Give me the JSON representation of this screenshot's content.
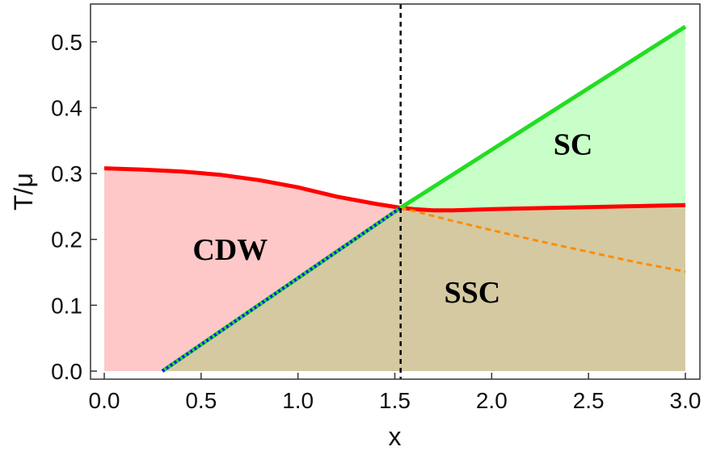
{
  "chart_data": {
    "type": "area",
    "xlabel": "x",
    "ylabel": "T/μ",
    "xlim": [
      0,
      3
    ],
    "ylim": [
      0,
      0.55
    ],
    "xticks": [
      "0.0",
      "0.5",
      "1.0",
      "1.5",
      "2.0",
      "2.5",
      "3.0"
    ],
    "yticks": [
      "0.0",
      "0.1",
      "0.2",
      "0.3",
      "0.4",
      "0.5"
    ],
    "grid": false,
    "critical_x": 1.53,
    "series": [
      {
        "style": "solid",
        "color": "#ff0000",
        "points": [
          [
            0.0,
            0.308
          ],
          [
            0.2,
            0.306
          ],
          [
            0.4,
            0.303
          ],
          [
            0.6,
            0.298
          ],
          [
            0.8,
            0.29
          ],
          [
            1.0,
            0.279
          ],
          [
            1.2,
            0.265
          ],
          [
            1.4,
            0.254
          ],
          [
            1.53,
            0.248
          ],
          [
            1.6,
            0.246
          ],
          [
            1.7,
            0.244
          ],
          [
            1.8,
            0.244
          ],
          [
            2.0,
            0.246
          ],
          [
            2.5,
            0.249
          ],
          [
            3.0,
            0.252
          ]
        ]
      },
      {
        "style": "solid",
        "color": "#22dd22",
        "points": [
          [
            0.3,
            0.0
          ],
          [
            1.53,
            0.248
          ],
          [
            3.0,
            0.523
          ]
        ]
      },
      {
        "style": "dotted",
        "color": "#1a1aff",
        "points": [
          [
            0.3,
            0.0
          ],
          [
            1.53,
            0.248
          ]
        ]
      },
      {
        "style": "dashed",
        "color": "#ff8c00",
        "points": [
          [
            1.53,
            0.248
          ],
          [
            1.8,
            0.228
          ],
          [
            2.0,
            0.214
          ],
          [
            2.25,
            0.197
          ],
          [
            2.5,
            0.181
          ],
          [
            2.75,
            0.165
          ],
          [
            3.0,
            0.151
          ]
        ]
      }
    ],
    "regions": [
      {
        "label": "CDW",
        "label_at": [
          0.65,
          0.185
        ],
        "color": "#ffc8c8"
      },
      {
        "label": "SSC",
        "label_at": [
          1.9,
          0.12
        ],
        "color": "#d5c9a1"
      },
      {
        "label": "SC",
        "label_at": [
          2.42,
          0.345
        ],
        "color": "#c8ffc8"
      }
    ]
  }
}
